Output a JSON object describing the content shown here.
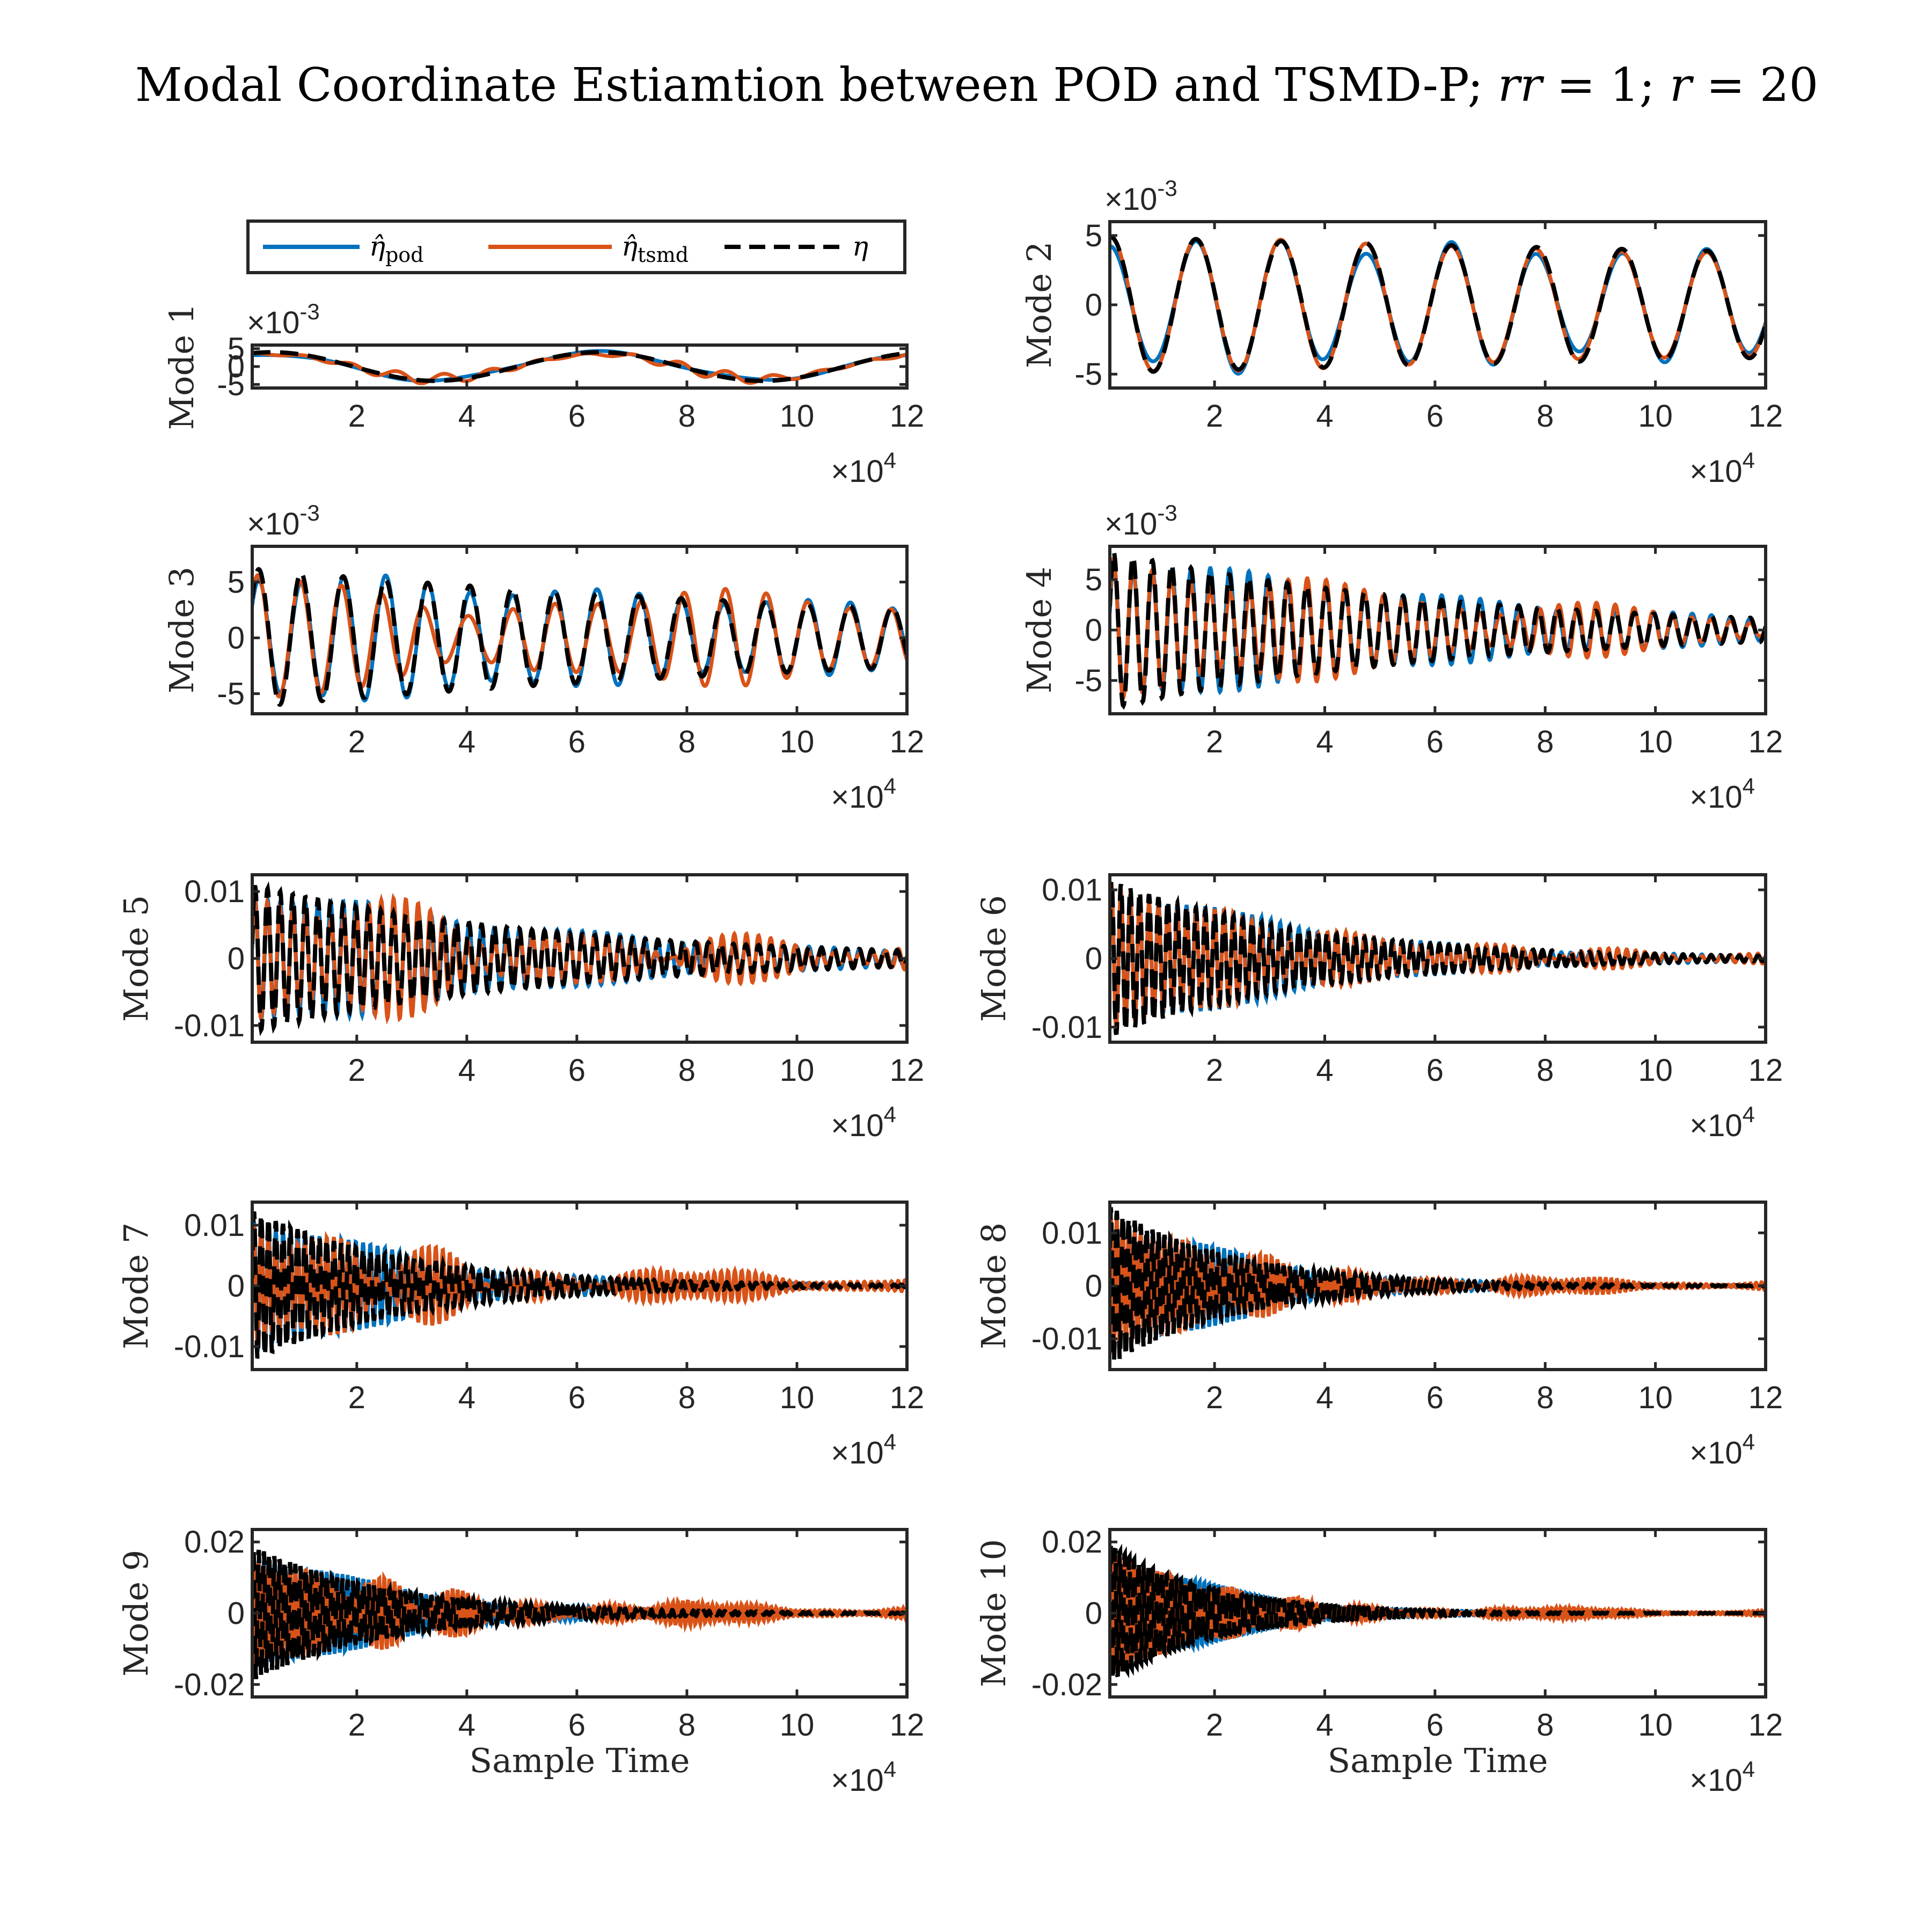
{
  "title": "Modal Coordinate Estiamtion between POD and TSMD-P; rr = 1; r = 20",
  "title_parts": {
    "text": "Modal Coordinate Estiamtion between POD and TSMD-P; ",
    "rr": "rr",
    "eq1": " = 1; ",
    "r": "r",
    "eq2": " = 20"
  },
  "legend": {
    "placement": "top of Mode 1 panel",
    "entries": [
      {
        "name": "pod",
        "label": "η̂",
        "sub": "pod",
        "color": "#0072BD",
        "style": "solid"
      },
      {
        "name": "tsmd",
        "label": "η̂",
        "sub": "tsmd",
        "color": "#D95319",
        "style": "solid"
      },
      {
        "name": "true",
        "label": "η",
        "sub": "",
        "color": "#000000",
        "style": "dashed"
      }
    ]
  },
  "colors": {
    "pod": "#0072BD",
    "tsmd": "#D95319",
    "true": "#000000",
    "axes": "#262626"
  },
  "chart_data": {
    "type": "line",
    "grid": false,
    "x_exponent_label": "×10",
    "x_exponent": "4",
    "x_ticks": [
      2,
      4,
      6,
      8,
      10,
      12
    ],
    "x_tick_labels": [
      "2",
      "4",
      "6",
      "8",
      "10",
      "12"
    ],
    "xlim": [
      0.1,
      12
    ],
    "xlabel": "Sample Time",
    "panels": [
      {
        "mode": 1,
        "ylabel": "Mode 1",
        "ylim": [
          -0.006,
          0.006
        ],
        "y_ticks": [
          -0.005,
          0,
          0.005
        ],
        "y_tick_labels": [
          "-5",
          "0",
          "5"
        ],
        "y_exp": "×10",
        "y_exp_power": "-3",
        "true_amp0": 0.004,
        "decay": 0.0,
        "cycles": 2.0,
        "phase": 1.2,
        "pod_err": 0.15,
        "tsmd_err": 0.35,
        "tsmd_cycles": 13,
        "xlabel_shown": false
      },
      {
        "mode": 2,
        "ylabel": "Mode 2",
        "ylim": [
          -0.006,
          0.006
        ],
        "y_ticks": [
          -0.005,
          0,
          0.005
        ],
        "y_tick_labels": [
          "-5",
          "0",
          "5"
        ],
        "y_exp": "×10",
        "y_exp_power": "-3",
        "true_amp0": 0.0049,
        "decay": 0.25,
        "cycles": 7.7,
        "phase": 1.5,
        "pod_err": 0.12,
        "tsmd_err": 0.05,
        "tsmd_cycles": 7.7,
        "xlabel_shown": false
      },
      {
        "mode": 3,
        "ylabel": "Mode 3",
        "ylim": [
          -0.0068,
          0.0082
        ],
        "y_ticks": [
          -0.005,
          0,
          0.005
        ],
        "y_tick_labels": [
          "-5",
          "0",
          "5"
        ],
        "y_exp": "×10",
        "y_exp_power": "-3",
        "true_amp0": 0.0062,
        "decay": 0.85,
        "cycles": 15.5,
        "phase": 0.6,
        "pod_err": 0.12,
        "tsmd_err": 0.45,
        "tsmd_cycles": 15.5,
        "xlabel_shown": false
      },
      {
        "mode": 4,
        "ylabel": "Mode 4",
        "ylim": [
          -0.0083,
          0.0083
        ],
        "y_ticks": [
          -0.005,
          0,
          0.005
        ],
        "y_tick_labels": [
          "-5",
          "0",
          "5"
        ],
        "y_exp": "×10",
        "y_exp_power": "-3",
        "true_amp0": 0.0078,
        "decay": 1.9,
        "cycles": 34,
        "phase": 0.3,
        "pod_err": 0.12,
        "tsmd_err": 0.3,
        "tsmd_cycles": 34,
        "xlabel_shown": false
      },
      {
        "mode": 5,
        "ylabel": "Mode 5",
        "ylim": [
          -0.0125,
          0.0125
        ],
        "y_ticks": [
          -0.01,
          0,
          0.01
        ],
        "y_tick_labels": [
          "-0.01",
          "0",
          "0.01"
        ],
        "y_exp": "",
        "y_exp_power": "",
        "true_amp0": 0.011,
        "decay": 2.2,
        "cycles": 52,
        "phase": 0.2,
        "pod_err": 0.12,
        "tsmd_err": 0.45,
        "tsmd_cycles": 52,
        "xlabel_shown": false
      },
      {
        "mode": 6,
        "ylabel": "Mode 6",
        "ylim": [
          -0.0122,
          0.0122
        ],
        "y_ticks": [
          -0.01,
          0,
          0.01
        ],
        "y_tick_labels": [
          "-0.01",
          "0",
          "0.01"
        ],
        "y_exp": "",
        "y_exp_power": "",
        "true_amp0": 0.0115,
        "decay": 3.4,
        "cycles": 70,
        "phase": 0.4,
        "pod_err": 0.12,
        "tsmd_err": 0.2,
        "tsmd_cycles": 70,
        "xlabel_shown": false
      },
      {
        "mode": 7,
        "ylabel": "Mode 7",
        "ylim": [
          -0.0138,
          0.0138
        ],
        "y_ticks": [
          -0.01,
          0,
          0.01
        ],
        "y_tick_labels": [
          "-0.01",
          "0",
          "0.01"
        ],
        "y_exp": "",
        "y_exp_power": "",
        "true_amp0": 0.0125,
        "decay": 4.2,
        "cycles": 90,
        "phase": 0.1,
        "pod_err": 0.12,
        "tsmd_err": 0.5,
        "tsmd_cycles": 90,
        "xlabel_shown": false
      },
      {
        "mode": 8,
        "ylabel": "Mode 8",
        "ylim": [
          -0.0158,
          0.0158
        ],
        "y_ticks": [
          -0.01,
          0,
          0.01
        ],
        "y_tick_labels": [
          "-0.01",
          "0",
          "0.01"
        ],
        "y_exp": "",
        "y_exp_power": "",
        "true_amp0": 0.015,
        "decay": 5.2,
        "cycles": 110,
        "phase": 0.5,
        "pod_err": 0.12,
        "tsmd_err": 0.25,
        "tsmd_cycles": 110,
        "xlabel_shown": false
      },
      {
        "mode": 9,
        "ylabel": "Mode 9",
        "ylim": [
          -0.0235,
          0.0235
        ],
        "y_ticks": [
          -0.02,
          0,
          0.02
        ],
        "y_tick_labels": [
          "-0.02",
          "0",
          "0.02"
        ],
        "y_exp": "",
        "y_exp_power": "",
        "true_amp0": 0.019,
        "decay": 4.8,
        "cycles": 125,
        "phase": 0.2,
        "pod_err": 0.12,
        "tsmd_err": 0.4,
        "tsmd_cycles": 125,
        "xlabel_shown": true
      },
      {
        "mode": 10,
        "ylabel": "Mode 10",
        "ylim": [
          -0.0235,
          0.0235
        ],
        "y_ticks": [
          -0.02,
          0,
          0.02
        ],
        "y_tick_labels": [
          "-0.02",
          "0",
          "0.02"
        ],
        "y_exp": "",
        "y_exp_power": "",
        "true_amp0": 0.02,
        "decay": 6.5,
        "cycles": 140,
        "phase": 0.6,
        "pod_err": 0.12,
        "tsmd_err": 0.2,
        "tsmd_cycles": 140,
        "xlabel_shown": true
      }
    ]
  }
}
